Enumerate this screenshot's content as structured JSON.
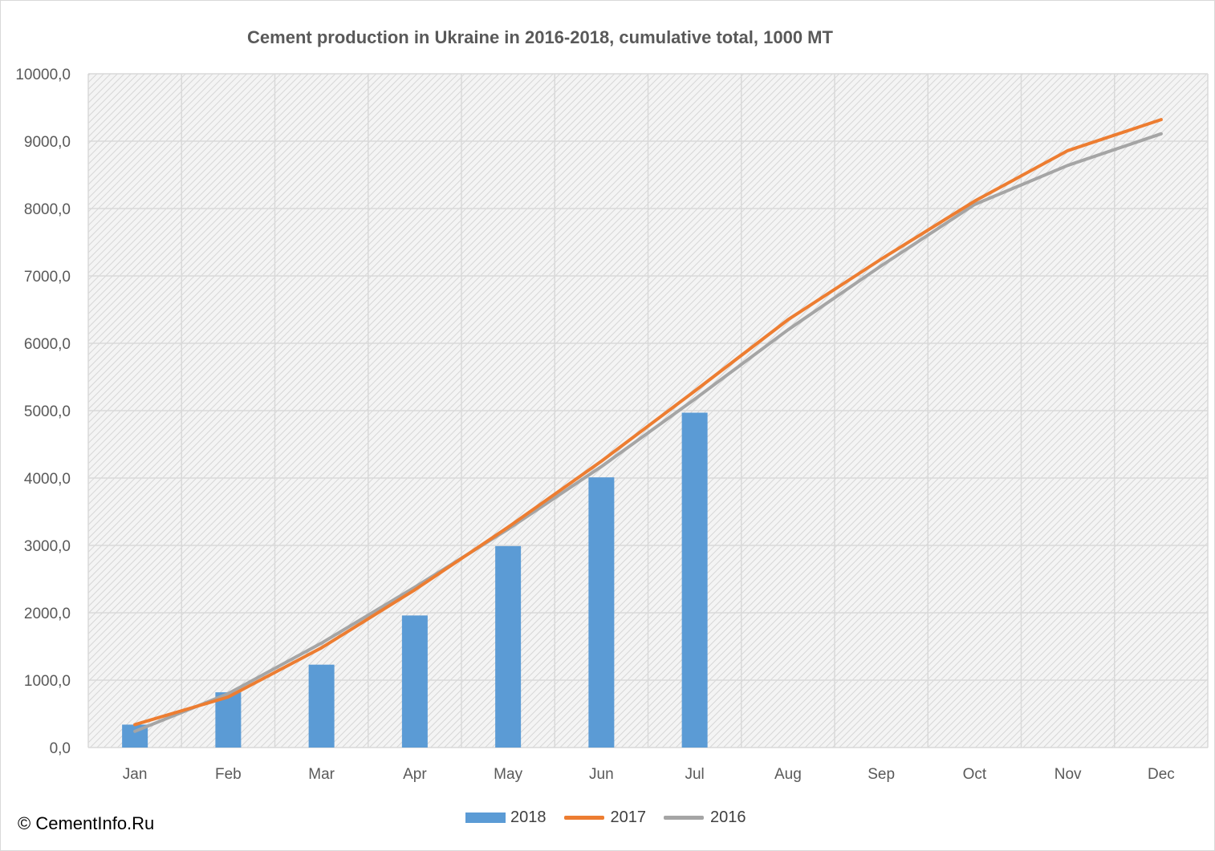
{
  "chart_data": {
    "type": "bar",
    "title": "Cement production in Ukraine in 2016-2018, cumulative total, 1000 MT",
    "xlabel": "",
    "ylabel": "",
    "categories": [
      "Jan",
      "Feb",
      "Mar",
      "Apr",
      "May",
      "Jun",
      "Jul",
      "Aug",
      "Sep",
      "Oct",
      "Nov",
      "Dec"
    ],
    "ylim": [
      0,
      10000
    ],
    "yticks": [
      0,
      1000,
      2000,
      3000,
      4000,
      5000,
      6000,
      7000,
      8000,
      9000,
      10000
    ],
    "ytick_labels": [
      "0,0",
      "1000,0",
      "2000,0",
      "3000,0",
      "4000,0",
      "5000,0",
      "6000,0",
      "7000,0",
      "8000,0",
      "9000,0",
      "10000,0"
    ],
    "grid": true,
    "legend_position": "bottom",
    "series": [
      {
        "name": "2018",
        "kind": "bar",
        "color": "#5b9bd5",
        "values": [
          340,
          820,
          1230,
          1960,
          2990,
          4010,
          4970,
          null,
          null,
          null,
          null,
          null
        ]
      },
      {
        "name": "2017",
        "kind": "line",
        "color": "#ed7d31",
        "values": [
          340,
          750,
          1480,
          2340,
          3270,
          4250,
          5290,
          6350,
          7250,
          8110,
          8860,
          9320
        ]
      },
      {
        "name": "2016",
        "kind": "line",
        "color": "#a5a5a5",
        "values": [
          240,
          800,
          1550,
          2380,
          3240,
          4170,
          5170,
          6200,
          7150,
          8060,
          8640,
          9110
        ]
      }
    ]
  },
  "watermark": "© CementInfo.Ru"
}
